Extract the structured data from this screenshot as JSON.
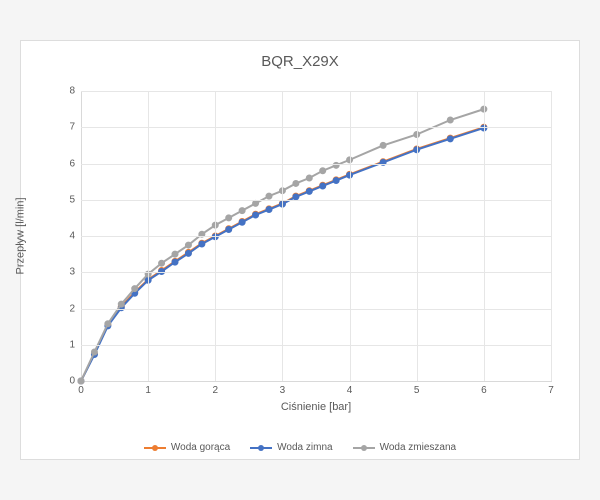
{
  "chart": {
    "type": "line",
    "title": "BQR_X29X",
    "title_fontsize": 15,
    "title_color": "#595959",
    "xlabel": "Ciśnienie [bar]",
    "ylabel": "Przepływ [l/min]",
    "label_fontsize": 11,
    "label_color": "#595959",
    "tick_fontsize": 10,
    "tick_color": "#595959",
    "background_color": "#ffffff",
    "grid_color": "#e6e6e6",
    "axis_color": "#d9d9d9",
    "xlim": [
      0,
      7
    ],
    "ylim": [
      0,
      8
    ],
    "xtick_step": 1,
    "ytick_step": 1,
    "marker_radius": 3,
    "line_width": 2,
    "x_values": [
      0,
      0.2,
      0.4,
      0.6,
      0.8,
      1.0,
      1.2,
      1.4,
      1.6,
      1.8,
      2.0,
      2.2,
      2.4,
      2.6,
      2.8,
      3.0,
      3.2,
      3.4,
      3.6,
      3.8,
      4.0,
      4.5,
      5.0,
      5.5,
      6.0
    ],
    "series": [
      {
        "name": "Woda gorąca",
        "color": "#ed7d31",
        "marker_color": "#ed7d31",
        "y": [
          0.0,
          0.75,
          1.55,
          2.05,
          2.45,
          2.8,
          3.05,
          3.3,
          3.55,
          3.8,
          4.0,
          4.2,
          4.4,
          4.6,
          4.75,
          4.9,
          5.1,
          5.25,
          5.4,
          5.55,
          5.7,
          6.05,
          6.4,
          6.7,
          7.0
        ]
      },
      {
        "name": "Woda zimna",
        "color": "#4472c4",
        "marker_color": "#4472c4",
        "y": [
          0.0,
          0.73,
          1.52,
          2.02,
          2.42,
          2.78,
          3.02,
          3.28,
          3.52,
          3.78,
          3.98,
          4.18,
          4.38,
          4.58,
          4.73,
          4.88,
          5.08,
          5.23,
          5.38,
          5.53,
          5.68,
          6.03,
          6.38,
          6.68,
          6.98
        ]
      },
      {
        "name": "Woda zmieszana",
        "color": "#a5a5a5",
        "marker_color": "#a5a5a5",
        "y": [
          0.0,
          0.8,
          1.58,
          2.12,
          2.55,
          2.95,
          3.25,
          3.5,
          3.75,
          4.05,
          4.3,
          4.5,
          4.7,
          4.9,
          5.1,
          5.25,
          5.45,
          5.6,
          5.8,
          5.95,
          6.1,
          6.5,
          6.8,
          7.2,
          7.5
        ]
      }
    ],
    "legend_position": "bottom"
  }
}
